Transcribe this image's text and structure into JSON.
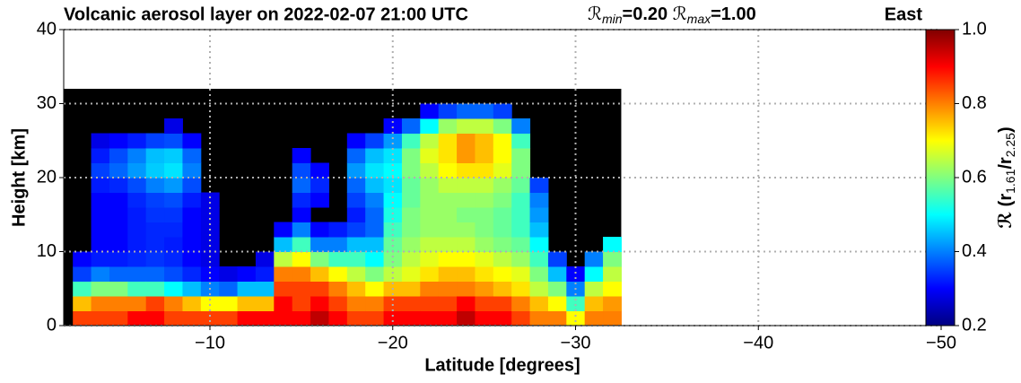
{
  "chart_data": {
    "type": "heatmap",
    "title": "Volcanic aerosol layer on 2022-02-07 21:00 UTC",
    "range_note": [
      {
        "symbol": "ℛ",
        "sub": "min",
        "text": "=0.20"
      },
      {
        "symbol": "ℛ",
        "sub": "max",
        "text": "=1.00"
      }
    ],
    "corner_label": "East",
    "xlabel": "Latitude [degrees]",
    "ylabel": "Height [km]",
    "colorbar_label": [
      {
        "text": "ℛ (r"
      },
      {
        "sub": "1.61"
      },
      {
        "text": "/r"
      },
      {
        "sub": "2.25"
      },
      {
        "text": ")"
      }
    ],
    "colormap": "jet",
    "grid": true,
    "xlim": [
      -2,
      -50
    ],
    "xticks": [
      {
        "value": -10,
        "label": "−10"
      },
      {
        "value": -20,
        "label": "−20"
      },
      {
        "value": -30,
        "label": "−30"
      },
      {
        "value": -40,
        "label": "−40"
      },
      {
        "value": -50,
        "label": "−50"
      }
    ],
    "ylim": [
      0,
      40
    ],
    "yticks": [
      0,
      10,
      20,
      30,
      40
    ],
    "clim": [
      0.2,
      1.0
    ],
    "cticks": [
      0.2,
      0.4,
      0.6,
      0.8,
      {
        "value": 1.0,
        "label": "1.0"
      }
    ],
    "x": [
      -3,
      -4,
      -5,
      -6,
      -7,
      -8,
      -9,
      -10,
      -11,
      -12,
      -13,
      -14,
      -15,
      -16,
      -17,
      -18,
      -19,
      -20,
      -21,
      -22,
      -23,
      -24,
      -25,
      -26,
      -27,
      -28,
      -29,
      -30,
      -31,
      -32
    ],
    "y": [
      1,
      3,
      5,
      7,
      9,
      11,
      13,
      15,
      17,
      19,
      21,
      23,
      25,
      27,
      29,
      31
    ],
    "values": [
      [
        0.85,
        0.75,
        0.55,
        0.35,
        0.3,
        null,
        null,
        null,
        null,
        null,
        null,
        null,
        null,
        null,
        null,
        null
      ],
      [
        0.85,
        0.8,
        0.6,
        0.4,
        0.32,
        0.3,
        0.3,
        0.3,
        0.3,
        0.32,
        0.35,
        0.32,
        0.28,
        null,
        null,
        null
      ],
      [
        0.85,
        0.8,
        0.6,
        0.38,
        0.32,
        0.3,
        0.3,
        0.3,
        0.3,
        0.33,
        0.38,
        0.36,
        0.3,
        null,
        null,
        null
      ],
      [
        0.9,
        0.8,
        0.55,
        0.38,
        0.33,
        0.32,
        0.32,
        0.32,
        0.33,
        0.36,
        0.42,
        0.4,
        0.32,
        null,
        null,
        null
      ],
      [
        0.9,
        0.85,
        0.55,
        0.38,
        0.34,
        0.33,
        0.33,
        0.34,
        0.35,
        0.4,
        0.46,
        0.45,
        0.35,
        null,
        null,
        null
      ],
      [
        0.85,
        0.8,
        0.5,
        0.36,
        0.33,
        0.32,
        0.33,
        0.34,
        0.36,
        0.42,
        0.48,
        0.46,
        0.36,
        0.28,
        null,
        null
      ],
      [
        0.85,
        0.75,
        0.45,
        0.33,
        0.3,
        0.3,
        0.3,
        0.3,
        0.32,
        0.36,
        0.4,
        0.38,
        0.3,
        null,
        null,
        null
      ],
      [
        0.85,
        0.7,
        0.4,
        0.3,
        0.28,
        0.28,
        0.28,
        0.28,
        0.28,
        null,
        null,
        null,
        null,
        null,
        null,
        null
      ],
      [
        0.85,
        0.7,
        0.38,
        0.28,
        null,
        null,
        null,
        null,
        null,
        null,
        null,
        null,
        null,
        null,
        null,
        null
      ],
      [
        0.9,
        0.75,
        0.45,
        0.3,
        null,
        null,
        null,
        null,
        null,
        null,
        null,
        null,
        null,
        null,
        null,
        null
      ],
      [
        0.9,
        0.75,
        0.45,
        0.32,
        0.28,
        null,
        null,
        null,
        null,
        null,
        null,
        null,
        null,
        null,
        null,
        null
      ],
      [
        0.9,
        0.9,
        0.85,
        0.8,
        0.65,
        0.45,
        0.3,
        null,
        null,
        null,
        null,
        null,
        null,
        null,
        null,
        null
      ],
      [
        0.9,
        0.85,
        0.85,
        0.8,
        0.7,
        0.55,
        0.4,
        0.3,
        0.33,
        0.38,
        0.36,
        0.3,
        null,
        null,
        null,
        null
      ],
      [
        0.95,
        0.9,
        0.85,
        0.75,
        0.6,
        0.4,
        0.3,
        null,
        0.3,
        0.33,
        0.3,
        null,
        null,
        null,
        null,
        null
      ],
      [
        0.9,
        0.85,
        0.8,
        0.7,
        0.55,
        0.4,
        0.32,
        null,
        null,
        null,
        null,
        null,
        null,
        null,
        null,
        null
      ],
      [
        0.85,
        0.8,
        0.75,
        0.65,
        0.55,
        0.45,
        0.35,
        0.32,
        0.35,
        0.38,
        0.42,
        0.38,
        0.3,
        null,
        null,
        null
      ],
      [
        0.85,
        0.8,
        0.7,
        0.6,
        0.5,
        0.45,
        0.38,
        0.38,
        0.4,
        0.45,
        0.48,
        0.45,
        0.35,
        null,
        null,
        null
      ],
      [
        0.9,
        0.85,
        0.75,
        0.65,
        0.6,
        0.58,
        0.55,
        0.52,
        0.5,
        0.48,
        0.5,
        0.48,
        0.42,
        0.3,
        null,
        null
      ],
      [
        0.9,
        0.85,
        0.75,
        0.68,
        0.65,
        0.62,
        0.6,
        0.6,
        0.58,
        0.58,
        0.6,
        0.6,
        0.55,
        0.38,
        null,
        null
      ],
      [
        0.9,
        0.85,
        0.8,
        0.72,
        0.68,
        0.65,
        0.62,
        0.62,
        0.62,
        0.62,
        0.65,
        0.68,
        0.65,
        0.5,
        0.3,
        null
      ],
      [
        0.9,
        0.85,
        0.8,
        0.75,
        0.7,
        0.65,
        0.62,
        0.62,
        0.62,
        0.65,
        0.7,
        0.72,
        0.72,
        0.62,
        0.35,
        null
      ],
      [
        0.95,
        0.9,
        0.8,
        0.75,
        0.7,
        0.65,
        0.62,
        0.6,
        0.62,
        0.65,
        0.72,
        0.78,
        0.78,
        0.65,
        0.38,
        null
      ],
      [
        0.9,
        0.85,
        0.78,
        0.72,
        0.68,
        0.62,
        0.6,
        0.6,
        0.62,
        0.65,
        0.72,
        0.75,
        0.75,
        0.65,
        0.38,
        null
      ],
      [
        0.9,
        0.85,
        0.75,
        0.7,
        0.65,
        0.6,
        0.58,
        0.58,
        0.6,
        0.62,
        0.68,
        0.7,
        0.7,
        0.6,
        0.35,
        null
      ],
      [
        0.85,
        0.8,
        0.72,
        0.68,
        0.62,
        0.58,
        0.55,
        0.55,
        0.55,
        0.58,
        0.6,
        0.6,
        0.55,
        0.4,
        null,
        null
      ],
      [
        0.8,
        0.75,
        0.65,
        0.6,
        0.55,
        0.5,
        0.45,
        0.42,
        0.4,
        0.35,
        null,
        null,
        null,
        null,
        null,
        null
      ],
      [
        0.8,
        0.7,
        0.6,
        0.45,
        0.35,
        null,
        null,
        null,
        null,
        null,
        null,
        null,
        null,
        null,
        null,
        null
      ],
      [
        0.7,
        0.55,
        0.4,
        0.3,
        null,
        null,
        null,
        null,
        null,
        null,
        null,
        null,
        null,
        null,
        null,
        null
      ],
      [
        0.8,
        0.75,
        0.65,
        0.5,
        0.4,
        null,
        null,
        null,
        null,
        null,
        null,
        null,
        null,
        null,
        null,
        null
      ],
      [
        0.8,
        0.78,
        0.7,
        0.65,
        0.6,
        0.5,
        null,
        null,
        null,
        null,
        null,
        null,
        null,
        null,
        null,
        null
      ]
    ]
  }
}
